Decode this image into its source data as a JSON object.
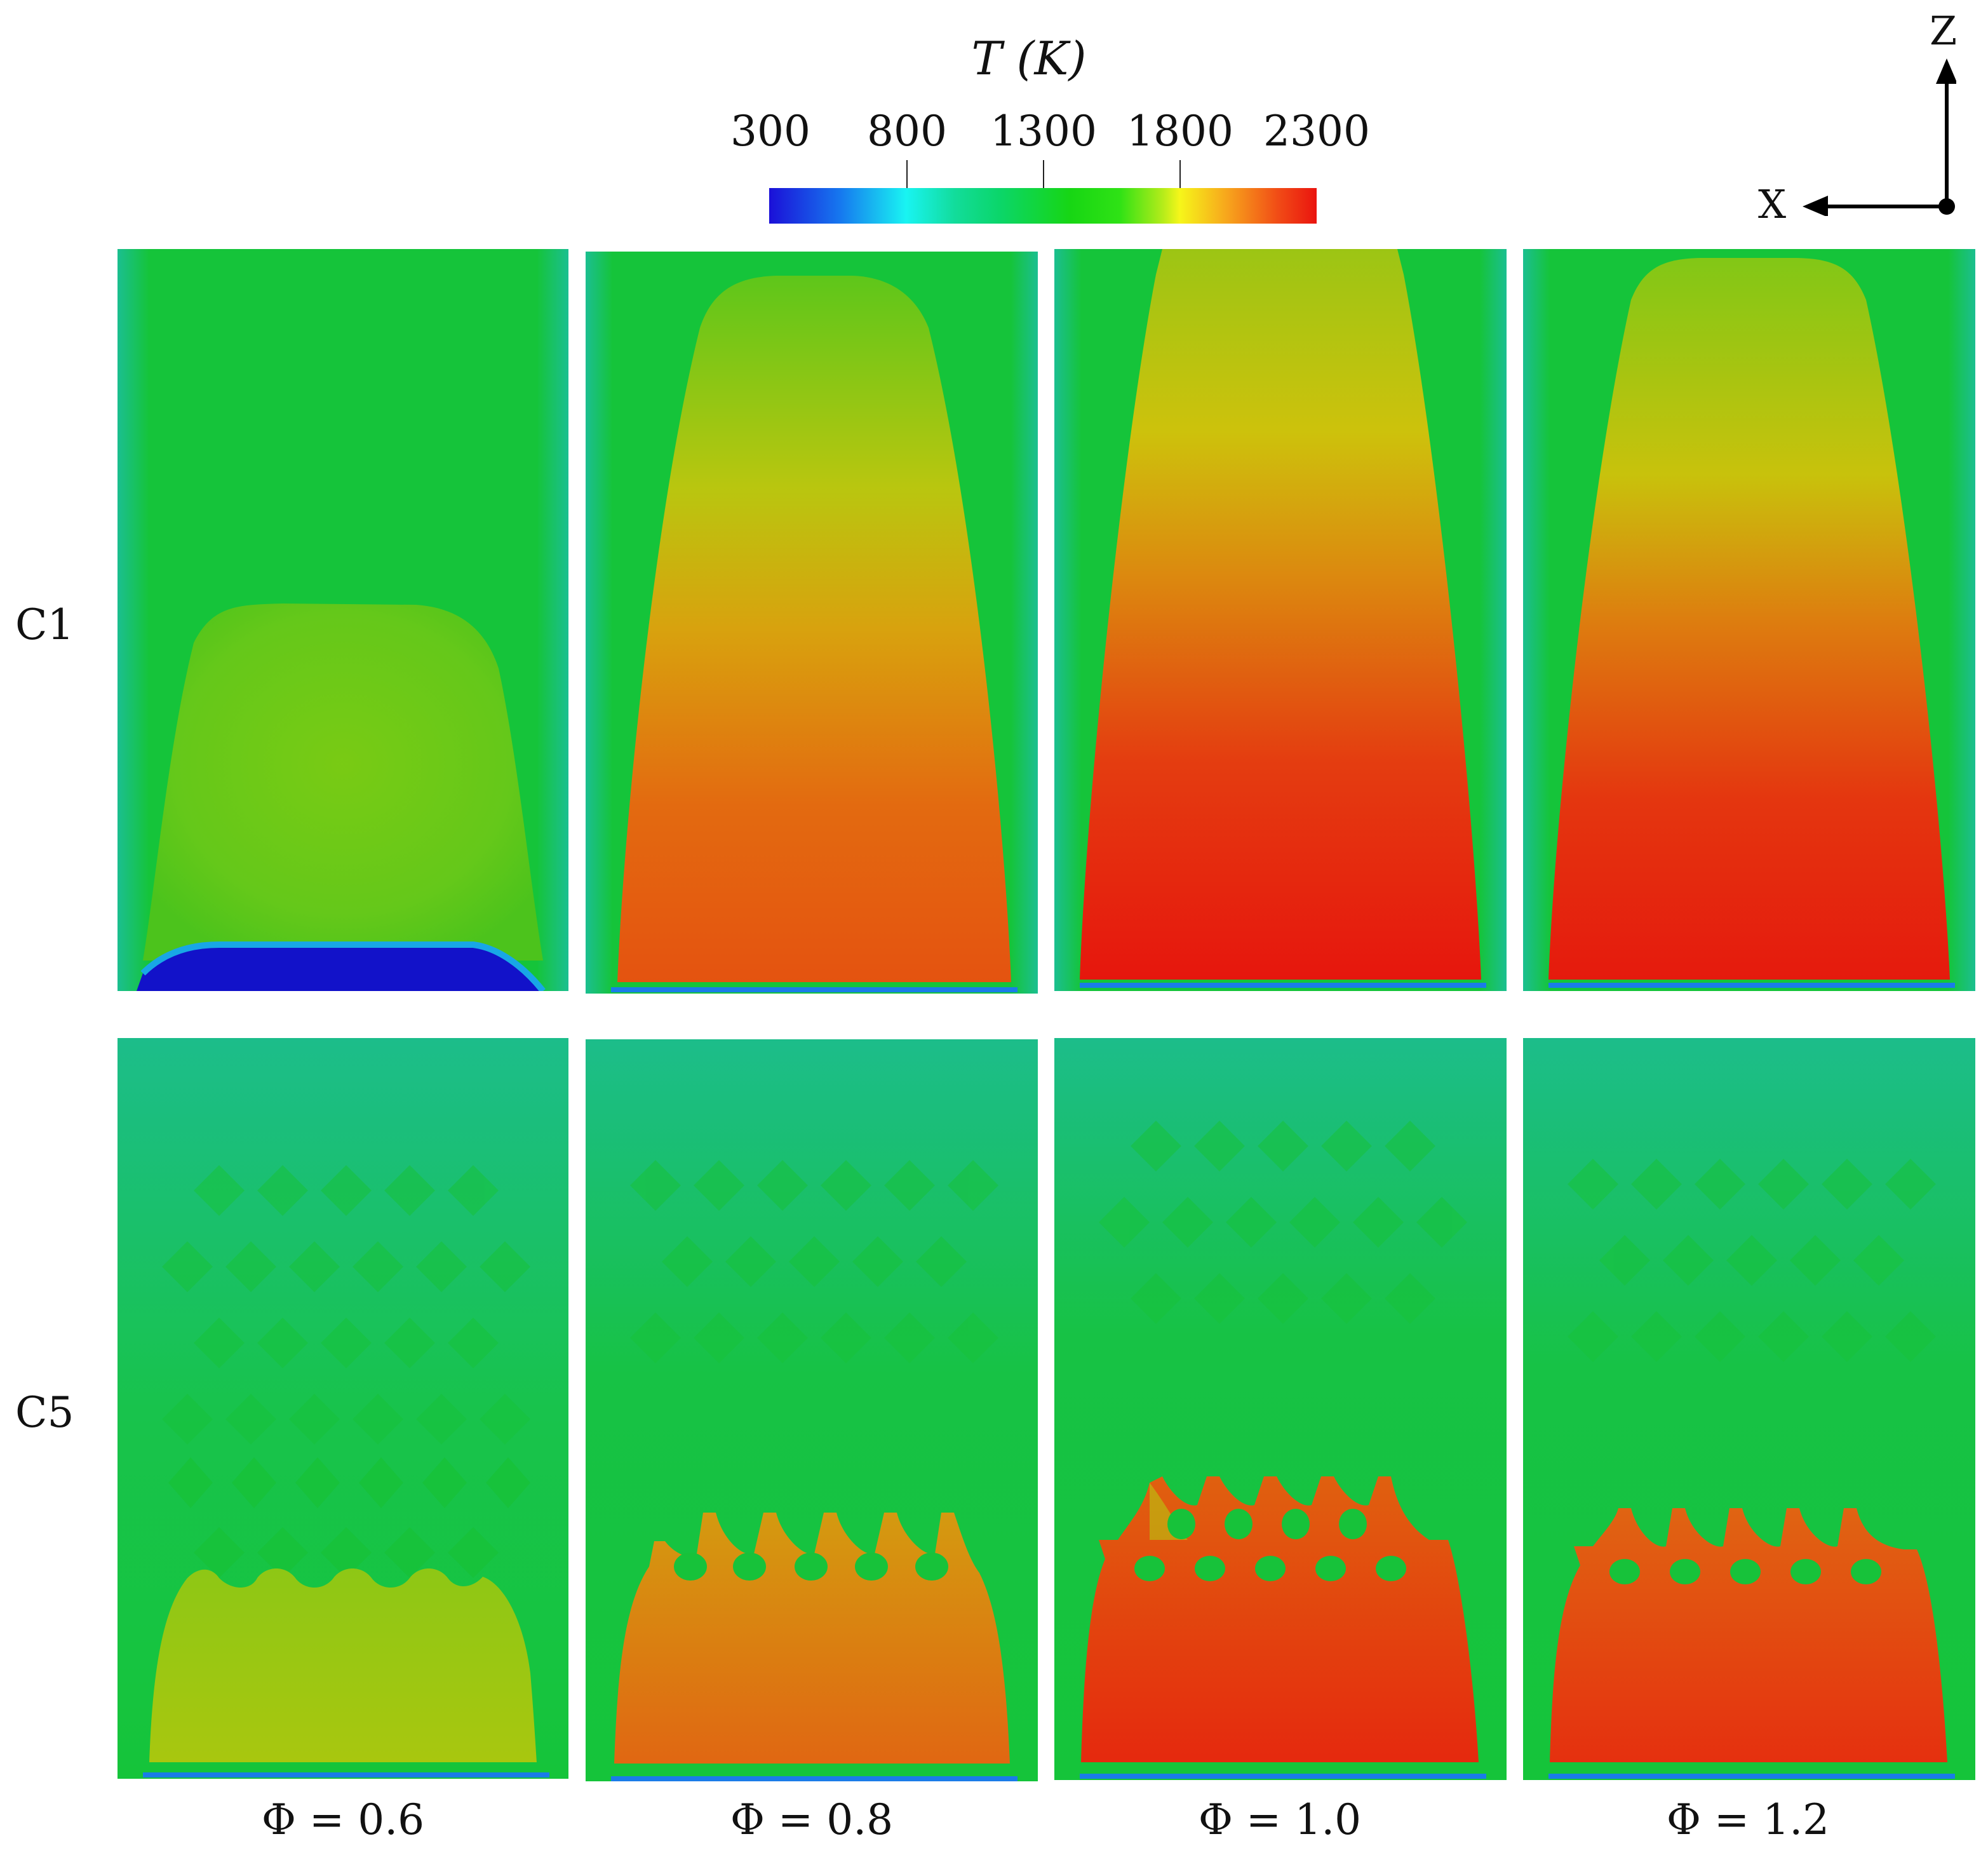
{
  "colorbar": {
    "title": "T (K)",
    "ticks": [
      "300",
      "800",
      "1300",
      "1800",
      "2300"
    ],
    "min": 300,
    "max": 2300,
    "colors": {
      "low": "#1b10d8",
      "cyan": "#19f4f2",
      "mid_green": "#17d614",
      "yellow": "#f6f61a",
      "high": "#ea140f"
    }
  },
  "axes": {
    "vertical": "Z",
    "horizontal": "X"
  },
  "rows": [
    {
      "label": "C1"
    },
    {
      "label": "C5"
    }
  ],
  "columns": [
    {
      "label": "Φ = 0.6",
      "phi": 0.6
    },
    {
      "label": "Φ = 0.8",
      "phi": 0.8
    },
    {
      "label": "Φ = 1.0",
      "phi": 1.0
    },
    {
      "label": "Φ = 1.2",
      "phi": 1.2
    }
  ]
}
